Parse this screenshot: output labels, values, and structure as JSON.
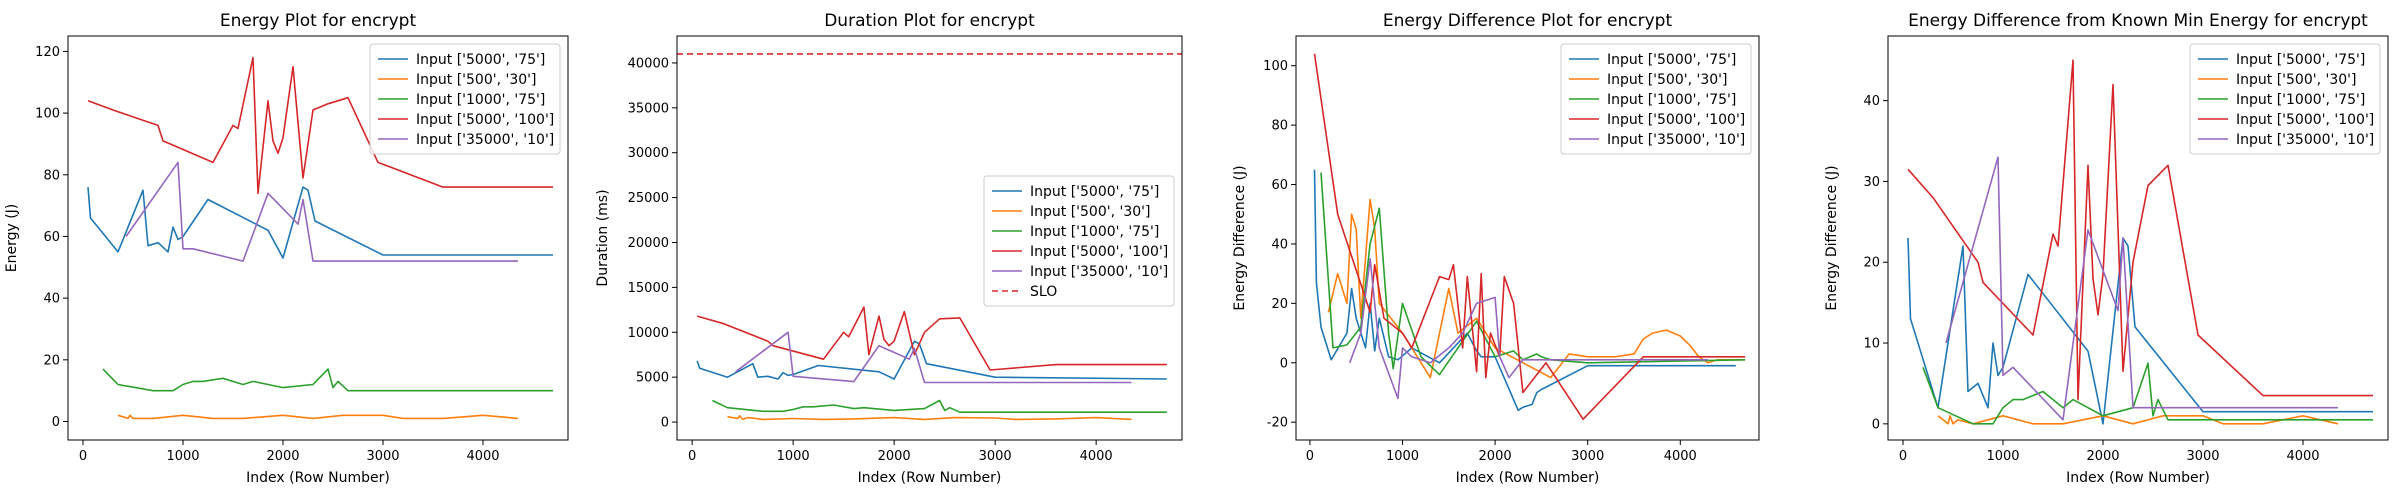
{
  "colors": [
    "#1f77b4",
    "#ff7f0e",
    "#2ca02c",
    "#d62728",
    "#9467bd"
  ],
  "slo_color": "#d62728",
  "chart_data": [
    {
      "type": "line",
      "title": "Energy Plot for encrypt",
      "xlabel": "Index (Row Number)",
      "ylabel": "Energy (J)",
      "xlim": [
        -150,
        4850
      ],
      "ylim": [
        -6,
        125
      ],
      "xticks": [
        0,
        1000,
        2000,
        3000,
        4000
      ],
      "yticks": [
        0,
        20,
        40,
        60,
        80,
        100,
        120
      ],
      "legend_position": "top-right",
      "series": [
        {
          "name": "Input ['5000', '75']",
          "x": [
            50,
            75,
            350,
            600,
            650,
            750,
            850,
            900,
            950,
            1000,
            1250,
            1850,
            2000,
            2200,
            2250,
            2320,
            3000,
            4700
          ],
          "y": [
            76,
            66,
            55,
            75,
            57,
            58,
            55,
            63,
            59,
            60,
            72,
            62,
            53,
            76,
            75,
            65,
            54,
            54
          ]
        },
        {
          "name": "Input ['500', '30']",
          "x": [
            350,
            450,
            470,
            500,
            550,
            700,
            1000,
            1300,
            1600,
            2000,
            2300,
            2600,
            3000,
            3200,
            3600,
            4000,
            4350
          ],
          "y": [
            2,
            1,
            2,
            1,
            1,
            1,
            2,
            1,
            1,
            2,
            1,
            2,
            2,
            1,
            1,
            2,
            1
          ]
        },
        {
          "name": "Input ['1000', '75']",
          "x": [
            200,
            350,
            700,
            900,
            1000,
            1100,
            1200,
            1400,
            1600,
            1700,
            2000,
            2300,
            2450,
            2500,
            2550,
            2650,
            4700
          ],
          "y": [
            17,
            12,
            10,
            10,
            12,
            13,
            13,
            14,
            12,
            13,
            11,
            12,
            17,
            11,
            13,
            10,
            10
          ]
        },
        {
          "name": "Input ['5000', '100']",
          "x": [
            50,
            300,
            750,
            800,
            1300,
            1500,
            1550,
            1700,
            1750,
            1850,
            1900,
            1950,
            2000,
            2100,
            2200,
            2300,
            2450,
            2650,
            2950,
            3600,
            4700
          ],
          "y": [
            104,
            101,
            96,
            91,
            84,
            96,
            95,
            118,
            74,
            104,
            91,
            87,
            92,
            115,
            79,
            101,
            103,
            105,
            84,
            76,
            76
          ]
        },
        {
          "name": "Input ['35000', '10']",
          "x": [
            430,
            950,
            1000,
            1100,
            1600,
            1850,
            2150,
            2200,
            2300,
            4350
          ],
          "y": [
            60,
            84,
            56,
            56,
            52,
            74,
            64,
            72,
            52,
            52
          ]
        }
      ]
    },
    {
      "type": "line",
      "title": "Duration Plot for encrypt",
      "xlabel": "Index (Row Number)",
      "ylabel": "Duration (ms)",
      "xlim": [
        -150,
        4850
      ],
      "ylim": [
        -2000,
        43000
      ],
      "xticks": [
        0,
        1000,
        2000,
        3000,
        4000
      ],
      "yticks": [
        0,
        5000,
        10000,
        15000,
        20000,
        25000,
        30000,
        35000,
        40000
      ],
      "legend_position": "center-right",
      "slo": {
        "name": "SLO",
        "y": 41000
      },
      "series": [
        {
          "name": "Input ['5000', '75']",
          "x": [
            50,
            75,
            350,
            600,
            650,
            750,
            850,
            900,
            950,
            1000,
            1250,
            1850,
            2000,
            2200,
            2250,
            2320,
            3000,
            4700
          ],
          "y": [
            6800,
            6000,
            5000,
            6500,
            5000,
            5100,
            4800,
            5500,
            5200,
            5300,
            6300,
            5600,
            4800,
            9000,
            8700,
            6500,
            5000,
            4800
          ]
        },
        {
          "name": "Input ['500', '30']",
          "x": [
            350,
            450,
            470,
            500,
            550,
            700,
            1000,
            1300,
            1600,
            2000,
            2300,
            2600,
            3000,
            3200,
            3600,
            4000,
            4350
          ],
          "y": [
            600,
            400,
            700,
            300,
            500,
            300,
            400,
            300,
            350,
            500,
            300,
            500,
            450,
            300,
            350,
            500,
            300
          ]
        },
        {
          "name": "Input ['1000', '75']",
          "x": [
            200,
            350,
            700,
            900,
            1000,
            1100,
            1200,
            1400,
            1600,
            1700,
            2000,
            2300,
            2450,
            2500,
            2550,
            2650,
            4700
          ],
          "y": [
            2400,
            1600,
            1200,
            1200,
            1400,
            1700,
            1700,
            1900,
            1500,
            1600,
            1300,
            1500,
            2400,
            1300,
            1600,
            1100,
            1100
          ]
        },
        {
          "name": "Input ['5000', '100']",
          "x": [
            50,
            300,
            750,
            800,
            1300,
            1500,
            1550,
            1700,
            1750,
            1850,
            1900,
            1950,
            2000,
            2100,
            2200,
            2300,
            2450,
            2650,
            2950,
            3600,
            4700
          ],
          "y": [
            11800,
            11000,
            9000,
            8500,
            7000,
            10000,
            9500,
            12800,
            7500,
            11800,
            9200,
            8500,
            9000,
            12300,
            7500,
            10000,
            11500,
            11600,
            5800,
            6400,
            6400
          ]
        },
        {
          "name": "Input ['35000', '10']",
          "x": [
            430,
            950,
            1000,
            1100,
            1600,
            1850,
            2150,
            2200,
            2300,
            4350
          ],
          "y": [
            5600,
            10000,
            5100,
            5000,
            4500,
            8500,
            7000,
            8200,
            4400,
            4400
          ]
        }
      ]
    },
    {
      "type": "line",
      "title": "Energy Difference Plot for encrypt",
      "xlabel": "Index (Row Number)",
      "ylabel": "Energy Difference (J)",
      "xlim": [
        -150,
        4850
      ],
      "ylim": [
        -26,
        110
      ],
      "xticks": [
        0,
        1000,
        2000,
        3000,
        4000
      ],
      "yticks": [
        -20,
        0,
        20,
        40,
        60,
        80,
        100
      ],
      "legend_position": "top-right",
      "series": [
        {
          "name": "Input ['5000', '75']",
          "x": [
            50,
            70,
            120,
            230,
            400,
            450,
            500,
            600,
            650,
            700,
            750,
            850,
            950,
            1100,
            1400,
            1700,
            1800,
            1850,
            2000,
            2250,
            2300,
            2400,
            2450,
            2500,
            3000,
            4600
          ],
          "y": [
            65,
            27,
            12,
            1,
            10,
            25,
            15,
            5,
            20,
            4,
            15,
            2,
            1,
            5,
            0,
            10,
            4,
            2,
            2,
            -16,
            -15,
            -14,
            -10,
            -9,
            -1,
            -1
          ]
        },
        {
          "name": "Input ['500', '30']",
          "x": [
            200,
            300,
            400,
            450,
            500,
            550,
            650,
            700,
            750,
            1000,
            1300,
            1500,
            1600,
            1800,
            2000,
            2300,
            2600,
            2800,
            3000,
            3300,
            3500,
            3600,
            3700,
            3850,
            4000,
            4100,
            4200,
            4300,
            4400,
            4700
          ],
          "y": [
            17,
            30,
            20,
            50,
            45,
            15,
            55,
            45,
            20,
            10,
            -5,
            25,
            10,
            15,
            5,
            0,
            -5,
            3,
            2,
            2,
            3,
            8,
            10,
            11,
            9,
            6,
            2,
            0,
            1,
            1
          ]
        },
        {
          "name": "Input ['1000', '75']",
          "x": [
            120,
            250,
            400,
            550,
            650,
            750,
            850,
            900,
            1000,
            1200,
            1400,
            1600,
            1800,
            2000,
            2200,
            2300,
            2450,
            2500,
            2600,
            3000,
            4700
          ],
          "y": [
            64,
            5,
            6,
            12,
            40,
            52,
            10,
            -2,
            20,
            2,
            -4,
            5,
            14,
            2,
            4,
            1,
            3,
            2,
            1,
            0,
            1
          ]
        },
        {
          "name": "Input ['5000', '100']",
          "x": [
            50,
            300,
            650,
            700,
            800,
            1000,
            1100,
            1350,
            1400,
            1500,
            1550,
            1650,
            1700,
            1800,
            1850,
            1900,
            1950,
            2050,
            2100,
            2200,
            2300,
            2550,
            2950,
            3600,
            4700
          ],
          "y": [
            104,
            50,
            17,
            33,
            15,
            10,
            5,
            25,
            29,
            28,
            33,
            5,
            29,
            -3,
            30,
            -5,
            10,
            2,
            29,
            20,
            -10,
            0,
            -19,
            2,
            2
          ]
        },
        {
          "name": "Input ['35000', '10']",
          "x": [
            430,
            550,
            650,
            750,
            950,
            1000,
            1100,
            1300,
            1500,
            1650,
            1800,
            2000,
            2050,
            2150,
            2300,
            4300
          ],
          "y": [
            0,
            10,
            35,
            5,
            -12,
            5,
            2,
            0,
            5,
            10,
            20,
            22,
            2,
            -5,
            1,
            1
          ]
        }
      ]
    },
    {
      "type": "line",
      "title": "Energy Difference from Known Min Energy for encrypt",
      "xlabel": "Index (Row Number)",
      "ylabel": "Energy Difference (J)",
      "xlim": [
        -150,
        4850
      ],
      "ylim": [
        -2,
        48
      ],
      "xticks": [
        0,
        1000,
        2000,
        3000,
        4000
      ],
      "yticks": [
        0,
        10,
        20,
        30,
        40
      ],
      "legend_position": "top-right",
      "series": [
        {
          "name": "Input ['5000', '75']",
          "x": [
            50,
            75,
            350,
            600,
            650,
            750,
            850,
            900,
            950,
            1000,
            1250,
            1850,
            2000,
            2200,
            2250,
            2320,
            3000,
            4700
          ],
          "y": [
            23,
            13,
            2,
            22,
            4,
            5,
            2,
            10,
            6,
            7,
            18.5,
            9,
            0,
            23,
            22,
            12,
            1.5,
            1.5
          ]
        },
        {
          "name": "Input ['500', '30']",
          "x": [
            350,
            450,
            470,
            500,
            550,
            700,
            1000,
            1300,
            1600,
            2000,
            2300,
            2600,
            3000,
            3200,
            3600,
            4000,
            4350
          ],
          "y": [
            1,
            0,
            1,
            0,
            0.5,
            0,
            1,
            0,
            0,
            1,
            0,
            1,
            1,
            0,
            0,
            1,
            0
          ]
        },
        {
          "name": "Input ['1000', '75']",
          "x": [
            200,
            350,
            700,
            900,
            1000,
            1100,
            1200,
            1400,
            1600,
            1700,
            2000,
            2300,
            2450,
            2500,
            2550,
            2650,
            4700
          ],
          "y": [
            7,
            2,
            0,
            0,
            2,
            3,
            3,
            4,
            2,
            3,
            1,
            2,
            7.5,
            1,
            3,
            0.5,
            0.5
          ]
        },
        {
          "name": "Input ['5000', '100']",
          "x": [
            50,
            300,
            750,
            800,
            1300,
            1500,
            1550,
            1700,
            1750,
            1850,
            1900,
            1950,
            2000,
            2100,
            2200,
            2300,
            2450,
            2650,
            2950,
            3600,
            4700
          ],
          "y": [
            31.5,
            28,
            20,
            17.5,
            11,
            23.5,
            22,
            45,
            3,
            32,
            18,
            13.5,
            18.5,
            42,
            6.5,
            20,
            29.5,
            32,
            11,
            3.5,
            3.5
          ]
        },
        {
          "name": "Input ['35000', '10']",
          "x": [
            430,
            950,
            1000,
            1100,
            1600,
            1850,
            2150,
            2200,
            2300,
            4350
          ],
          "y": [
            10,
            33,
            6,
            7,
            0.5,
            24,
            14,
            23,
            2,
            2
          ]
        }
      ]
    }
  ]
}
